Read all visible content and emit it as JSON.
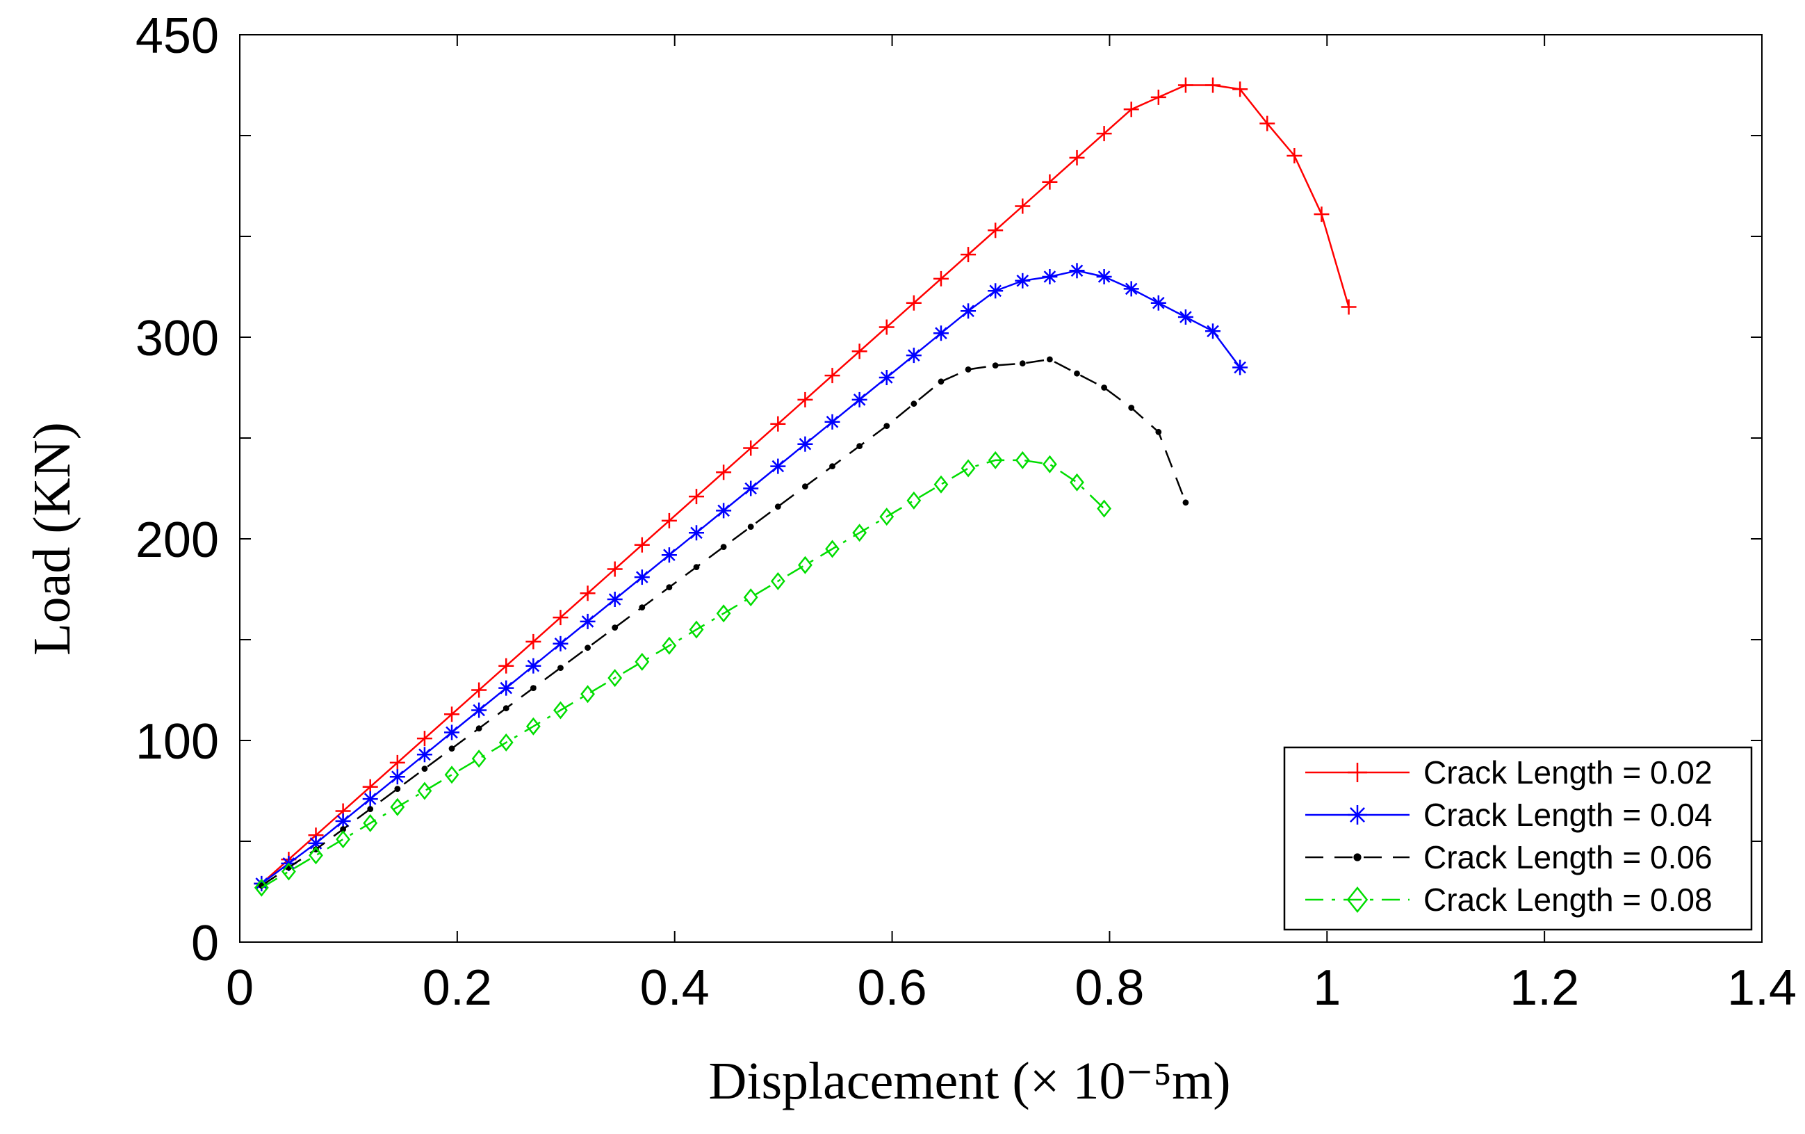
{
  "chart_data": {
    "type": "line",
    "title": "",
    "xlabel": "Displacement (× 10⁻⁵m)",
    "ylabel": "Load (KN)",
    "xlim": [
      0,
      1.4
    ],
    "ylim": [
      0,
      450
    ],
    "x_ticks": [
      0,
      0.2,
      0.4,
      0.6,
      0.8,
      1,
      1.2,
      1.4
    ],
    "x_tick_labels": [
      "0",
      "0.2",
      "0.4",
      "0.6",
      "0.8",
      "1",
      "1.2",
      "1.4"
    ],
    "y_ticks": [
      0,
      50,
      100,
      150,
      200,
      250,
      300,
      350,
      400,
      450
    ],
    "y_tick_labels": [
      "0",
      "",
      "100",
      "",
      "200",
      "",
      "300",
      "",
      "",
      "450"
    ],
    "grid": false,
    "legend_position": "bottom-right",
    "series": [
      {
        "name": "Crack Length = 0.02",
        "color": "#ff0000",
        "dash": "solid",
        "marker": "plus",
        "x": [
          0.02,
          0.045,
          0.07,
          0.095,
          0.12,
          0.145,
          0.17,
          0.195,
          0.22,
          0.245,
          0.27,
          0.295,
          0.32,
          0.345,
          0.37,
          0.395,
          0.42,
          0.445,
          0.47,
          0.495,
          0.52,
          0.545,
          0.57,
          0.595,
          0.62,
          0.645,
          0.67,
          0.695,
          0.72,
          0.745,
          0.77,
          0.795,
          0.82,
          0.845,
          0.87,
          0.895,
          0.92,
          0.945,
          0.97,
          0.995,
          1.02
        ],
        "y": [
          29,
          41,
          53,
          65,
          77,
          89,
          101,
          113,
          125,
          137,
          149,
          161,
          173,
          185,
          197,
          209,
          221,
          233,
          245,
          257,
          269,
          281,
          293,
          305,
          317,
          329,
          341,
          353,
          365,
          377,
          389,
          401,
          413,
          419,
          425,
          425,
          423,
          406,
          390,
          361,
          315
        ]
      },
      {
        "name": "Crack Length = 0.04",
        "color": "#0000ff",
        "dash": "solid",
        "marker": "asterisk",
        "x": [
          0.02,
          0.045,
          0.07,
          0.095,
          0.12,
          0.145,
          0.17,
          0.195,
          0.22,
          0.245,
          0.27,
          0.295,
          0.32,
          0.345,
          0.37,
          0.395,
          0.42,
          0.445,
          0.47,
          0.495,
          0.52,
          0.545,
          0.57,
          0.595,
          0.62,
          0.645,
          0.67,
          0.695,
          0.72,
          0.745,
          0.77,
          0.795,
          0.82,
          0.845,
          0.87,
          0.895,
          0.92
        ],
        "y": [
          29,
          39,
          49,
          60,
          71,
          82,
          93,
          104,
          115,
          126,
          137,
          148,
          159,
          170,
          181,
          192,
          203,
          214,
          225,
          236,
          247,
          258,
          269,
          280,
          291,
          302,
          313,
          323,
          328,
          330,
          333,
          330,
          324,
          317,
          310,
          303,
          285
        ]
      },
      {
        "name": "Crack Length = 0.06",
        "color": "#000000",
        "dash": "dashed",
        "marker": "dot",
        "x": [
          0.02,
          0.045,
          0.07,
          0.095,
          0.12,
          0.145,
          0.17,
          0.195,
          0.22,
          0.245,
          0.27,
          0.295,
          0.32,
          0.345,
          0.37,
          0.395,
          0.42,
          0.445,
          0.47,
          0.495,
          0.52,
          0.545,
          0.57,
          0.595,
          0.62,
          0.645,
          0.67,
          0.695,
          0.72,
          0.745,
          0.77,
          0.795,
          0.82,
          0.845,
          0.87
        ],
        "y": [
          28,
          37,
          46,
          56,
          66,
          76,
          86,
          96,
          106,
          116,
          126,
          136,
          146,
          156,
          166,
          176,
          186,
          196,
          206,
          216,
          226,
          236,
          246,
          256,
          267,
          278,
          284,
          286,
          287,
          289,
          282,
          275,
          265,
          253,
          218
        ]
      },
      {
        "name": "Crack Length = 0.08",
        "color": "#00dd00",
        "dash": "dashdot",
        "marker": "diamond",
        "x": [
          0.02,
          0.045,
          0.07,
          0.095,
          0.12,
          0.145,
          0.17,
          0.195,
          0.22,
          0.245,
          0.27,
          0.295,
          0.32,
          0.345,
          0.37,
          0.395,
          0.42,
          0.445,
          0.47,
          0.495,
          0.52,
          0.545,
          0.57,
          0.595,
          0.62,
          0.645,
          0.67,
          0.695,
          0.72,
          0.745,
          0.77,
          0.795
        ],
        "y": [
          27,
          35,
          43,
          51,
          59,
          67,
          75,
          83,
          91,
          99,
          107,
          115,
          123,
          131,
          139,
          147,
          155,
          163,
          171,
          179,
          187,
          195,
          203,
          211,
          219,
          227,
          235,
          239,
          239,
          237,
          228,
          215
        ]
      }
    ]
  }
}
